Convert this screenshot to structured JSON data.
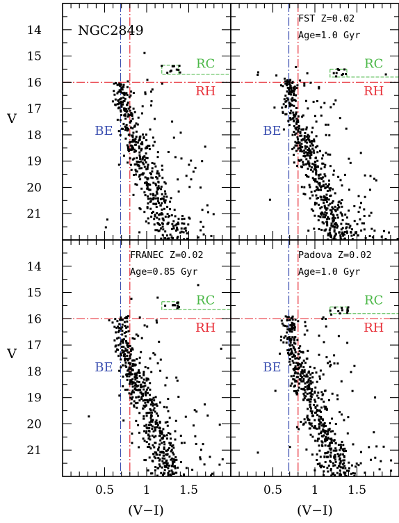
{
  "chart_data": {
    "type": "scatter",
    "shared_axes": {
      "xlabel": "(V−I)",
      "ylabel": "V",
      "xlim": [
        0.0,
        2.0
      ],
      "ylim": [
        22.0,
        13.0
      ],
      "y_inverted": true,
      "x_ticks": [
        "0.5",
        "1",
        "1.5"
      ],
      "y_ticks": [
        "14",
        "15",
        "16",
        "17",
        "18",
        "19",
        "20",
        "21"
      ]
    },
    "reference_lines": {
      "be_color": "0.69",
      "rh_color": "0.80",
      "rh_mag": "16.0"
    },
    "colors": {
      "BE": "#3b4fb0",
      "RH": "#e8313a",
      "RC": "#4cb848",
      "points": "#000000"
    },
    "panels": [
      {
        "id": "ngc2849",
        "label": "NGC2849",
        "info": [],
        "markers": {
          "BE": "BE",
          "RH": "RH",
          "RC": "RC"
        },
        "clump": {
          "color_min": 1.18,
          "color_max": 1.38,
          "mag_top": 15.35,
          "mag_bottom": 15.7
        },
        "seed": 11,
        "n_points": 470
      },
      {
        "id": "fst",
        "label": "",
        "info": [
          "FST Z=0.02",
          "Age=1.0 Gyr"
        ],
        "markers": {
          "BE": "BE",
          "RH": "RH",
          "RC": "RC"
        },
        "clump": {
          "color_min": 1.18,
          "color_max": 1.38,
          "mag_top": 15.5,
          "mag_bottom": 15.8
        },
        "seed": 23,
        "n_points": 560
      },
      {
        "id": "franec",
        "label": "",
        "info": [
          "FRANEC Z=0.02",
          "Age=0.85 Gyr"
        ],
        "markers": {
          "BE": "BE",
          "RH": "RH",
          "RC": "RC"
        },
        "clump": {
          "color_min": 1.18,
          "color_max": 1.38,
          "mag_top": 15.35,
          "mag_bottom": 15.65
        },
        "seed": 37,
        "n_points": 540
      },
      {
        "id": "padova",
        "label": "",
        "info": [
          "Padova Z=0.02",
          "Age=1.0 Gyr"
        ],
        "markers": {
          "BE": "BE",
          "RH": "RH",
          "RC": "RC"
        },
        "clump": {
          "color_min": 1.18,
          "color_max": 1.38,
          "mag_top": 15.55,
          "mag_bottom": 15.8
        },
        "seed": 53,
        "n_points": 560
      }
    ]
  }
}
